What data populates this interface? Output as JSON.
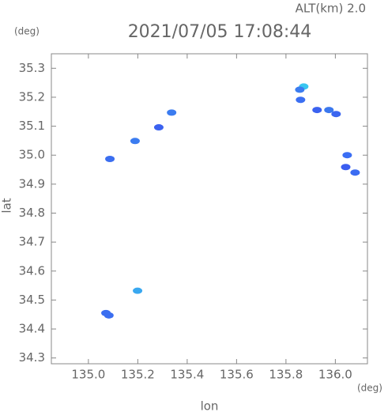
{
  "chart_data": {
    "type": "scatter",
    "title": "2021/07/05 17:08:44",
    "subtitle": "ALT(km) 2.0",
    "x_label": "lon",
    "y_label": "lat",
    "x_unit": "(deg)",
    "y_unit": "(deg)",
    "x": [
      135.872,
      135.856,
      135.859,
      135.926,
      135.974,
      136.003,
      136.048,
      136.042,
      136.08,
      135.087,
      135.189,
      135.285,
      135.337,
      135.199,
      135.071,
      135.083
    ],
    "y": [
      35.237,
      35.226,
      35.191,
      35.156,
      35.156,
      35.142,
      35.0,
      34.959,
      34.94,
      34.987,
      35.049,
      35.096,
      35.147,
      34.532,
      34.455,
      34.447
    ],
    "colors": [
      "#39c6f0",
      "#3b7cf0",
      "#3b6ff2",
      "#3b62f0",
      "#3b78ee",
      "#3b66f0",
      "#3b6ef4",
      "#3b5ef0",
      "#3b6cf2",
      "#3b6ef0",
      "#3b7cf0",
      "#3b62f0",
      "#3b7cf0",
      "#39a8f0",
      "#3b6ef0",
      "#3b6ef0"
    ],
    "xlim": [
      134.85,
      136.13
    ],
    "ylim": [
      34.28,
      35.35
    ],
    "xticks": [
      {
        "value": 135,
        "label": "135.0"
      },
      135.2,
      135.4,
      135.6,
      135.8,
      {
        "value": 136,
        "label": "136.0"
      }
    ],
    "yticks": [
      34.3,
      34.4,
      34.5,
      34.6,
      34.7,
      34.8,
      34.9,
      {
        "value": 35,
        "label": "35.0"
      },
      35.1,
      35.2,
      35.3
    ]
  }
}
